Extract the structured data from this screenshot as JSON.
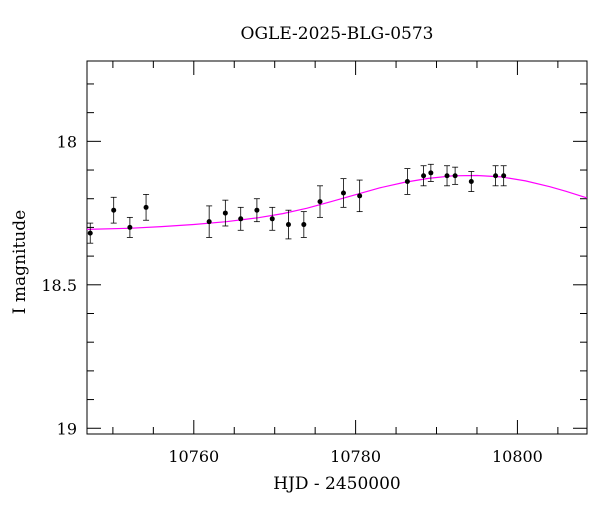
{
  "chart_data": {
    "type": "scatter",
    "title": "OGLE-2025-BLG-0573",
    "xlabel": "HJD - 2450000",
    "ylabel": "I magnitude",
    "xlim": [
      10746.8,
      10808.6
    ],
    "ylim": [
      19.02,
      17.72
    ],
    "y_inverted": true,
    "x_ticks": [
      10760,
      10780,
      10800
    ],
    "x_tick_labels": [
      "10760",
      "10780",
      "10800"
    ],
    "y_ticks": [
      18,
      18.5,
      19
    ],
    "y_tick_labels": [
      "18",
      "18.5",
      "19"
    ],
    "grid": false,
    "colors": {
      "points": "#000000",
      "model": "#ff00ff"
    },
    "series": [
      {
        "kind": "points-with-errorbars",
        "x": [
          10747.2,
          10750.1,
          10752.1,
          10754.1,
          10761.9,
          10763.9,
          10765.8,
          10767.8,
          10769.7,
          10771.7,
          10773.6,
          10775.6,
          10778.5,
          10780.5,
          10786.4,
          10788.4,
          10789.3,
          10791.3,
          10792.3,
          10794.3,
          10797.3,
          10798.3
        ],
        "y": [
          18.32,
          18.24,
          18.3,
          18.23,
          18.28,
          18.25,
          18.27,
          18.24,
          18.27,
          18.29,
          18.29,
          18.21,
          18.18,
          18.19,
          18.14,
          18.12,
          18.11,
          18.12,
          18.12,
          18.14,
          18.12,
          18.12
        ],
        "err": [
          0.035,
          0.045,
          0.035,
          0.045,
          0.055,
          0.045,
          0.04,
          0.04,
          0.04,
          0.05,
          0.045,
          0.055,
          0.05,
          0.055,
          0.045,
          0.035,
          0.03,
          0.035,
          0.03,
          0.035,
          0.035,
          0.035
        ]
      },
      {
        "kind": "model-curve",
        "x": [
          10746.8,
          10752,
          10756,
          10760,
          10764,
          10768,
          10771,
          10774,
          10777,
          10780,
          10783,
          10786,
          10789,
          10792,
          10795,
          10798,
          10801,
          10804,
          10806,
          10808.6
        ],
        "y": [
          18.307,
          18.303,
          18.297,
          18.29,
          18.28,
          18.266,
          18.252,
          18.233,
          18.21,
          18.186,
          18.162,
          18.143,
          18.129,
          18.12,
          18.119,
          18.124,
          18.138,
          18.158,
          18.174,
          18.197
        ]
      }
    ]
  }
}
